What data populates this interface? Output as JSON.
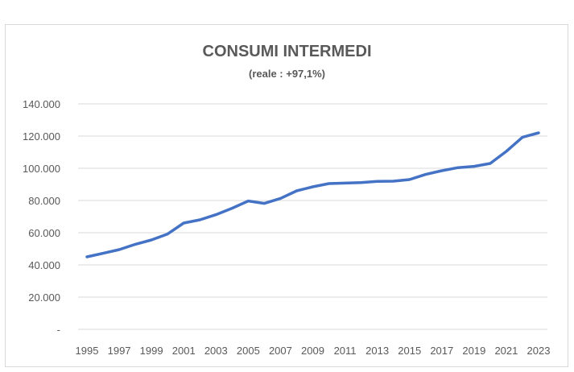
{
  "chart_data": {
    "type": "line",
    "title": "CONSUMI INTERMEDI",
    "subtitle": "(reale : +97,1%)",
    "xlabel": "",
    "ylabel": "",
    "ylim": [
      0,
      140000
    ],
    "y_ticks": [
      0,
      20000,
      40000,
      60000,
      80000,
      100000,
      120000,
      140000
    ],
    "y_tick_labels": [
      "-",
      "20.000",
      "40.000",
      "60.000",
      "80.000",
      "100.000",
      "120.000",
      "140.000"
    ],
    "x": [
      1995,
      1996,
      1997,
      1998,
      1999,
      2000,
      2001,
      2002,
      2003,
      2004,
      2005,
      2006,
      2007,
      2008,
      2009,
      2010,
      2011,
      2012,
      2013,
      2014,
      2015,
      2016,
      2017,
      2018,
      2019,
      2020,
      2021,
      2022,
      2023
    ],
    "x_tick_labels": [
      "1995",
      "1997",
      "1999",
      "2001",
      "2003",
      "2005",
      "2007",
      "2009",
      "2011",
      "2013",
      "2015",
      "2017",
      "2019",
      "2021",
      "2023"
    ],
    "grid": true,
    "legend": "none",
    "series": [
      {
        "color": "#4472c4",
        "values": [
          45000,
          47200,
          49500,
          52800,
          55500,
          59200,
          66000,
          68000,
          71200,
          75200,
          79700,
          78200,
          81300,
          86000,
          88500,
          90500,
          90800,
          91100,
          91900,
          92000,
          93000,
          96200,
          98500,
          100400,
          101200,
          103000,
          110500,
          119300,
          122000
        ]
      }
    ]
  }
}
